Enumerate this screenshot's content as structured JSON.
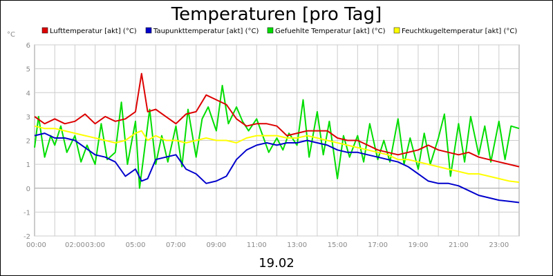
{
  "chart_data": {
    "type": "line",
    "title": "Temperaturen [pro Tag]",
    "xlabel": "19.02",
    "ylabel": "°C",
    "ylim": [
      -2,
      6
    ],
    "xlim": [
      0,
      24
    ],
    "y_ticks": [
      6,
      5,
      4,
      3,
      2,
      1,
      0,
      -1,
      -2
    ],
    "x_ticks": [
      {
        "hour": 0,
        "label": "00:00"
      },
      {
        "hour": 2,
        "label": "02:00"
      },
      {
        "hour": 3,
        "label": "03:00"
      },
      {
        "hour": 5,
        "label": "05:00"
      },
      {
        "hour": 7,
        "label": "07:00"
      },
      {
        "hour": 9,
        "label": "09:00"
      },
      {
        "hour": 11,
        "label": "11:00"
      },
      {
        "hour": 13,
        "label": "13:00"
      },
      {
        "hour": 15,
        "label": "15:00"
      },
      {
        "hour": 17,
        "label": "17:00"
      },
      {
        "hour": 19,
        "label": "19:00"
      },
      {
        "hour": 21,
        "label": "21:00"
      },
      {
        "hour": 23,
        "label": "23:00"
      }
    ],
    "grid": true,
    "legend_position": "top",
    "series": [
      {
        "name": "Lufttemperatur [akt] (°C)",
        "color": "#dd0000",
        "points": [
          [
            0,
            3.0
          ],
          [
            0.5,
            2.7
          ],
          [
            1,
            2.9
          ],
          [
            1.5,
            2.7
          ],
          [
            2,
            2.8
          ],
          [
            2.5,
            3.1
          ],
          [
            3,
            2.7
          ],
          [
            3.5,
            3.0
          ],
          [
            4,
            2.8
          ],
          [
            4.5,
            2.9
          ],
          [
            5,
            3.2
          ],
          [
            5.3,
            4.8
          ],
          [
            5.6,
            3.2
          ],
          [
            6,
            3.3
          ],
          [
            6.5,
            3.0
          ],
          [
            7,
            2.7
          ],
          [
            7.5,
            3.1
          ],
          [
            8,
            3.2
          ],
          [
            8.5,
            3.9
          ],
          [
            9,
            3.7
          ],
          [
            9.5,
            3.5
          ],
          [
            10,
            2.9
          ],
          [
            10.5,
            2.6
          ],
          [
            11,
            2.7
          ],
          [
            11.5,
            2.7
          ],
          [
            12,
            2.6
          ],
          [
            12.5,
            2.2
          ],
          [
            13,
            2.3
          ],
          [
            13.5,
            2.4
          ],
          [
            14,
            2.4
          ],
          [
            14.5,
            2.4
          ],
          [
            15,
            2.1
          ],
          [
            15.5,
            2.0
          ],
          [
            16,
            2.0
          ],
          [
            16.5,
            1.8
          ],
          [
            17,
            1.6
          ],
          [
            17.5,
            1.5
          ],
          [
            18,
            1.4
          ],
          [
            18.5,
            1.5
          ],
          [
            19,
            1.6
          ],
          [
            19.5,
            1.8
          ],
          [
            20,
            1.6
          ],
          [
            20.5,
            1.5
          ],
          [
            21,
            1.4
          ],
          [
            21.5,
            1.5
          ],
          [
            22,
            1.3
          ],
          [
            22.5,
            1.2
          ],
          [
            23,
            1.1
          ],
          [
            23.5,
            1.0
          ],
          [
            24,
            0.9
          ]
        ]
      },
      {
        "name": "Taupunkttemperatur [akt] (°C)",
        "color": "#0000cc",
        "points": [
          [
            0,
            2.2
          ],
          [
            0.5,
            2.3
          ],
          [
            1,
            2.1
          ],
          [
            1.5,
            2.1
          ],
          [
            2,
            2.0
          ],
          [
            2.5,
            1.7
          ],
          [
            3,
            1.4
          ],
          [
            3.5,
            1.3
          ],
          [
            4,
            1.1
          ],
          [
            4.5,
            0.5
          ],
          [
            5,
            0.8
          ],
          [
            5.3,
            0.3
          ],
          [
            5.6,
            0.4
          ],
          [
            6,
            1.2
          ],
          [
            6.5,
            1.3
          ],
          [
            7,
            1.4
          ],
          [
            7.5,
            0.8
          ],
          [
            8,
            0.6
          ],
          [
            8.5,
            0.2
          ],
          [
            9,
            0.3
          ],
          [
            9.5,
            0.5
          ],
          [
            10,
            1.2
          ],
          [
            10.5,
            1.6
          ],
          [
            11,
            1.8
          ],
          [
            11.5,
            1.9
          ],
          [
            12,
            1.8
          ],
          [
            12.5,
            1.9
          ],
          [
            13,
            1.9
          ],
          [
            13.5,
            2.0
          ],
          [
            14,
            1.9
          ],
          [
            14.5,
            1.8
          ],
          [
            15,
            1.6
          ],
          [
            15.5,
            1.5
          ],
          [
            16,
            1.5
          ],
          [
            16.5,
            1.4
          ],
          [
            17,
            1.3
          ],
          [
            17.5,
            1.2
          ],
          [
            18,
            1.1
          ],
          [
            18.5,
            0.9
          ],
          [
            19,
            0.6
          ],
          [
            19.5,
            0.3
          ],
          [
            20,
            0.2
          ],
          [
            20.5,
            0.2
          ],
          [
            21,
            0.1
          ],
          [
            21.5,
            -0.1
          ],
          [
            22,
            -0.3
          ],
          [
            22.5,
            -0.4
          ],
          [
            23,
            -0.5
          ],
          [
            23.5,
            -0.55
          ],
          [
            24,
            -0.6
          ]
        ]
      },
      {
        "name": "Gefuehlte Temperatur [akt] (°C)",
        "color": "#00dd00",
        "points": [
          [
            0,
            1.7
          ],
          [
            0.2,
            3.0
          ],
          [
            0.5,
            1.3
          ],
          [
            0.8,
            2.2
          ],
          [
            1,
            1.8
          ],
          [
            1.3,
            2.6
          ],
          [
            1.6,
            1.5
          ],
          [
            2,
            2.2
          ],
          [
            2.3,
            1.1
          ],
          [
            2.6,
            1.8
          ],
          [
            3,
            1.0
          ],
          [
            3.3,
            2.7
          ],
          [
            3.6,
            1.2
          ],
          [
            4,
            1.5
          ],
          [
            4.3,
            3.6
          ],
          [
            4.6,
            1.0
          ],
          [
            5,
            2.8
          ],
          [
            5.2,
            0.0
          ],
          [
            5.4,
            1.3
          ],
          [
            5.7,
            3.3
          ],
          [
            6,
            1.0
          ],
          [
            6.3,
            2.2
          ],
          [
            6.6,
            1.1
          ],
          [
            7,
            2.6
          ],
          [
            7.3,
            0.9
          ],
          [
            7.6,
            3.3
          ],
          [
            8,
            1.3
          ],
          [
            8.3,
            2.9
          ],
          [
            8.6,
            3.4
          ],
          [
            9,
            2.4
          ],
          [
            9.3,
            4.3
          ],
          [
            9.6,
            2.7
          ],
          [
            10,
            3.4
          ],
          [
            10.3,
            2.8
          ],
          [
            10.6,
            2.4
          ],
          [
            11,
            2.9
          ],
          [
            11.3,
            2.2
          ],
          [
            11.6,
            1.5
          ],
          [
            12,
            2.1
          ],
          [
            12.3,
            1.6
          ],
          [
            12.6,
            2.3
          ],
          [
            13,
            1.8
          ],
          [
            13.3,
            3.7
          ],
          [
            13.6,
            1.3
          ],
          [
            14,
            3.2
          ],
          [
            14.3,
            1.4
          ],
          [
            14.6,
            2.8
          ],
          [
            15,
            0.4
          ],
          [
            15.3,
            2.2
          ],
          [
            15.6,
            1.3
          ],
          [
            16,
            2.2
          ],
          [
            16.3,
            1.1
          ],
          [
            16.6,
            2.7
          ],
          [
            17,
            1.2
          ],
          [
            17.3,
            2.0
          ],
          [
            17.6,
            1.1
          ],
          [
            18,
            2.9
          ],
          [
            18.3,
            1.0
          ],
          [
            18.6,
            2.1
          ],
          [
            19,
            0.8
          ],
          [
            19.3,
            2.3
          ],
          [
            19.6,
            1.0
          ],
          [
            20,
            2.1
          ],
          [
            20.3,
            3.1
          ],
          [
            20.6,
            0.5
          ],
          [
            21,
            2.7
          ],
          [
            21.3,
            1.1
          ],
          [
            21.6,
            3.0
          ],
          [
            22,
            1.4
          ],
          [
            22.3,
            2.6
          ],
          [
            22.6,
            1.1
          ],
          [
            23,
            2.8
          ],
          [
            23.3,
            1.2
          ],
          [
            23.6,
            2.6
          ],
          [
            24,
            2.5
          ]
        ]
      },
      {
        "name": "Feuchtkugeltemperatur [akt] (°C)",
        "color": "#ffff00",
        "points": [
          [
            0,
            2.6
          ],
          [
            0.5,
            2.5
          ],
          [
            1,
            2.5
          ],
          [
            1.5,
            2.4
          ],
          [
            2,
            2.3
          ],
          [
            2.5,
            2.2
          ],
          [
            3,
            2.1
          ],
          [
            3.5,
            2.0
          ],
          [
            4,
            1.9
          ],
          [
            4.5,
            2.0
          ],
          [
            5,
            2.3
          ],
          [
            5.3,
            2.4
          ],
          [
            5.6,
            2.0
          ],
          [
            6,
            2.2
          ],
          [
            6.5,
            2.0
          ],
          [
            7,
            2.0
          ],
          [
            7.5,
            1.9
          ],
          [
            8,
            2.0
          ],
          [
            8.5,
            2.1
          ],
          [
            9,
            2.0
          ],
          [
            9.5,
            2.0
          ],
          [
            10,
            1.9
          ],
          [
            10.5,
            2.1
          ],
          [
            11,
            2.2
          ],
          [
            11.5,
            2.2
          ],
          [
            12,
            2.2
          ],
          [
            12.5,
            2.1
          ],
          [
            13,
            2.1
          ],
          [
            13.5,
            2.2
          ],
          [
            14,
            2.1
          ],
          [
            14.5,
            2.0
          ],
          [
            15,
            1.9
          ],
          [
            15.5,
            1.8
          ],
          [
            16,
            1.7
          ],
          [
            16.5,
            1.6
          ],
          [
            17,
            1.5
          ],
          [
            17.5,
            1.4
          ],
          [
            18,
            1.2
          ],
          [
            18.5,
            1.2
          ],
          [
            19,
            1.1
          ],
          [
            19.5,
            1.0
          ],
          [
            20,
            0.9
          ],
          [
            20.5,
            0.8
          ],
          [
            21,
            0.7
          ],
          [
            21.5,
            0.6
          ],
          [
            22,
            0.6
          ],
          [
            22.5,
            0.5
          ],
          [
            23,
            0.4
          ],
          [
            23.5,
            0.3
          ],
          [
            24,
            0.25
          ]
        ]
      }
    ]
  }
}
